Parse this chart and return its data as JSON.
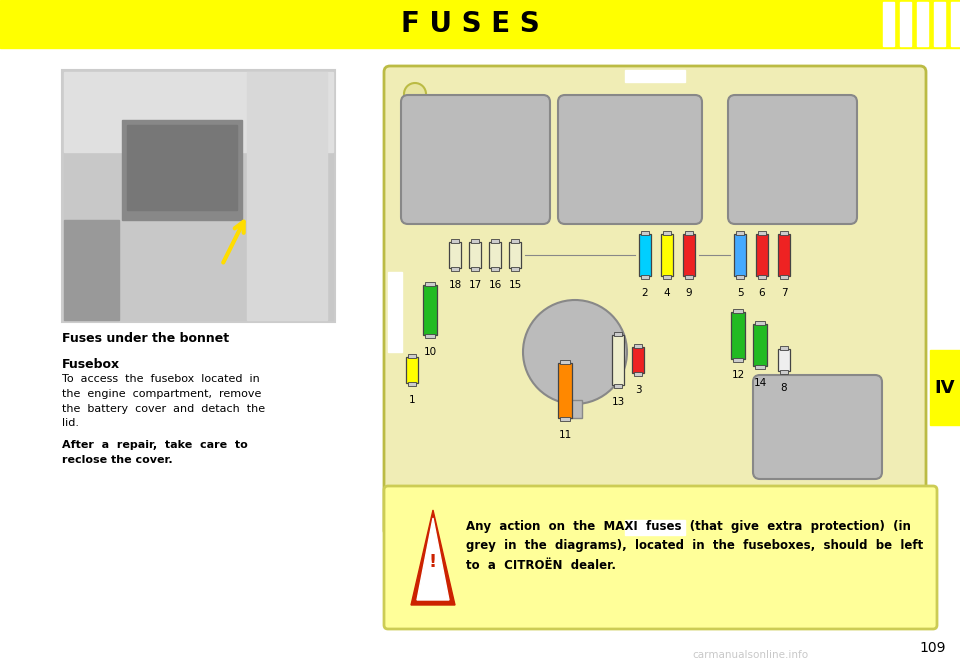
{
  "title": "F U S E S",
  "title_bg": "#FFFF00",
  "title_color": "#000000",
  "title_fontsize": 20,
  "page_bg": "#FFFFFF",
  "page_number": "109",
  "chapter_label": "IV",
  "chapter_bg": "#FFFF00",
  "fusebox_bg": "#F0EDB5",
  "fusebox_border": "#BBBB44",
  "relay_color": "#BBBBBB",
  "warning_bg": "#FFFF99",
  "warning_border": "#CCCC55",
  "left_text_title1": "Fuses under the bonnet",
  "left_text_bold1": "Fusebox",
  "left_text_body1": "To  access  the  fusebox  located  in\nthe  engine  compartment,  remove\nthe  battery  cover  and  detach  the\nlid.",
  "left_text_bold2": "After  a  repair,  take  care  to\nreclose the cover.",
  "warning_line1": "Any  action  on  the  MAXI  fuses  (that  give  extra  protection)  (in",
  "warning_line2": "grey  in  the  diagrams),  located  in  the  fuseboxes,  should  be  left",
  "warning_line3": "to  a  CITROËN  dealer."
}
